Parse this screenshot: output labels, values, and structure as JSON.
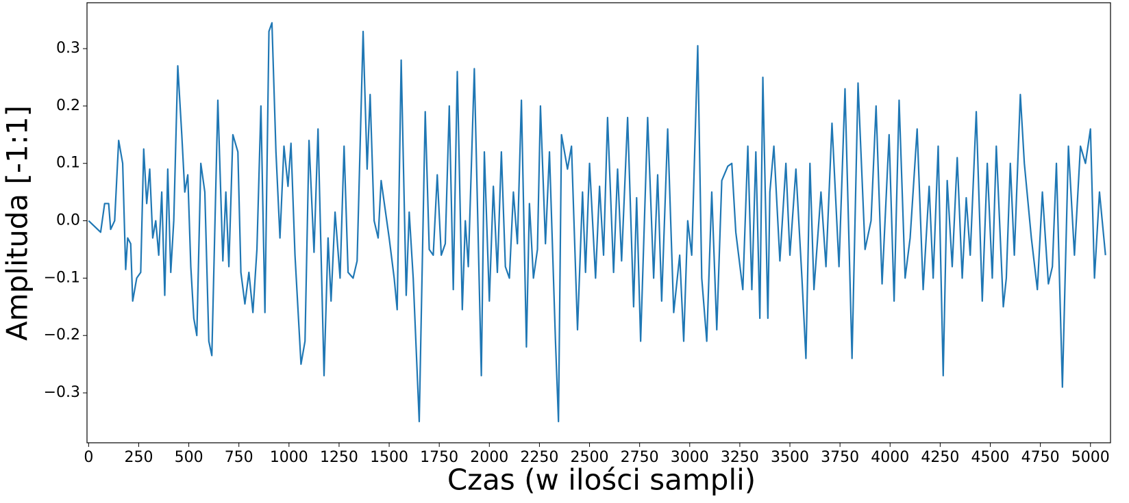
{
  "chart_data": {
    "type": "line",
    "xlabel": "Czas (w ilości sampli)",
    "ylabel": "Amplituda [-1:1]",
    "color": "#1f77b4",
    "xlim": [
      -8,
      5100
    ],
    "ylim": [
      -0.387,
      0.38
    ],
    "xticks": [
      0,
      250,
      500,
      750,
      1000,
      1250,
      1500,
      1750,
      2000,
      2250,
      2500,
      2750,
      3000,
      3250,
      3500,
      3750,
      4000,
      4250,
      4500,
      4750,
      5000
    ],
    "yticks": [
      {
        "value": -0.3,
        "label": "−0.3"
      },
      {
        "value": -0.2,
        "label": "−0.2"
      },
      {
        "value": -0.1,
        "label": "−0.1"
      },
      {
        "value": 0,
        "label": "0.0"
      },
      {
        "value": 0.1,
        "label": "0.1"
      },
      {
        "value": 0.2,
        "label": "0.2"
      },
      {
        "value": 0.3,
        "label": "0.3"
      }
    ],
    "x": [
      0,
      60,
      80,
      100,
      110,
      130,
      150,
      170,
      185,
      195,
      210,
      220,
      240,
      260,
      275,
      290,
      305,
      320,
      335,
      350,
      365,
      380,
      395,
      410,
      425,
      445,
      465,
      480,
      495,
      510,
      525,
      540,
      560,
      580,
      600,
      615,
      645,
      670,
      685,
      700,
      720,
      745,
      760,
      780,
      800,
      820,
      840,
      860,
      880,
      900,
      915,
      935,
      955,
      975,
      995,
      1010,
      1030,
      1060,
      1080,
      1100,
      1125,
      1145,
      1175,
      1195,
      1210,
      1230,
      1255,
      1275,
      1295,
      1320,
      1340,
      1370,
      1390,
      1405,
      1425,
      1445,
      1460,
      1480,
      1500,
      1525,
      1540,
      1560,
      1585,
      1600,
      1620,
      1650,
      1680,
      1700,
      1720,
      1740,
      1760,
      1780,
      1800,
      1820,
      1840,
      1865,
      1880,
      1895,
      1925,
      1960,
      1975,
      2000,
      2020,
      2040,
      2060,
      2080,
      2100,
      2120,
      2140,
      2160,
      2185,
      2200,
      2220,
      2240,
      2255,
      2280,
      2300,
      2330,
      2345,
      2360,
      2390,
      2410,
      2440,
      2465,
      2480,
      2500,
      2530,
      2550,
      2570,
      2590,
      2620,
      2640,
      2660,
      2690,
      2720,
      2735,
      2755,
      2790,
      2820,
      2840,
      2860,
      2890,
      2920,
      2950,
      2970,
      2990,
      3010,
      3040,
      3060,
      3085,
      3110,
      3135,
      3160,
      3190,
      3210,
      3230,
      3265,
      3290,
      3310,
      3330,
      3350,
      3365,
      3390,
      3400,
      3420,
      3450,
      3480,
      3500,
      3530,
      3560,
      3580,
      3600,
      3620,
      3655,
      3680,
      3710,
      3745,
      3775,
      3810,
      3840,
      3875,
      3905,
      3930,
      3960,
      3995,
      4020,
      4045,
      4075,
      4100,
      4135,
      4165,
      4195,
      4215,
      4240,
      4265,
      4285,
      4310,
      4335,
      4360,
      4380,
      4400,
      4430,
      4460,
      4485,
      4510,
      4530,
      4565,
      4580,
      4600,
      4620,
      4650,
      4670,
      4705,
      4735,
      4760,
      4790,
      4810,
      4830,
      4860,
      4890,
      4920,
      4950,
      4975,
      5000,
      5020,
      5045,
      5075
    ],
    "values": [
      0.0,
      -0.02,
      0.03,
      0.03,
      -0.015,
      0.0,
      0.14,
      0.1,
      -0.085,
      -0.03,
      -0.04,
      -0.14,
      -0.1,
      -0.09,
      0.125,
      0.03,
      0.09,
      -0.03,
      0.0,
      -0.06,
      0.05,
      -0.13,
      0.09,
      -0.09,
      0.0,
      0.27,
      0.15,
      0.05,
      0.08,
      -0.08,
      -0.17,
      -0.2,
      0.1,
      0.05,
      -0.21,
      -0.235,
      0.21,
      -0.07,
      0.05,
      -0.08,
      0.15,
      0.12,
      -0.09,
      -0.145,
      -0.09,
      -0.16,
      -0.05,
      0.2,
      -0.16,
      0.33,
      0.345,
      0.12,
      -0.03,
      0.13,
      0.06,
      0.135,
      -0.06,
      -0.25,
      -0.21,
      0.14,
      -0.055,
      0.16,
      -0.27,
      -0.03,
      -0.14,
      0.015,
      -0.1,
      0.13,
      -0.09,
      -0.1,
      -0.07,
      0.33,
      0.09,
      0.22,
      0.0,
      -0.03,
      0.07,
      0.02,
      -0.03,
      -0.1,
      -0.155,
      0.28,
      -0.13,
      0.015,
      -0.1,
      -0.35,
      0.19,
      -0.05,
      -0.06,
      0.08,
      -0.06,
      -0.04,
      0.2,
      -0.12,
      0.26,
      -0.155,
      0.0,
      -0.08,
      0.265,
      -0.27,
      0.12,
      -0.14,
      0.06,
      -0.09,
      0.12,
      -0.08,
      -0.1,
      0.05,
      -0.04,
      0.21,
      -0.22,
      0.03,
      -0.1,
      -0.05,
      0.2,
      -0.04,
      0.12,
      -0.21,
      -0.35,
      0.15,
      0.09,
      0.13,
      -0.19,
      0.05,
      -0.09,
      0.1,
      -0.1,
      0.06,
      -0.06,
      0.18,
      -0.09,
      0.09,
      -0.07,
      0.18,
      -0.15,
      0.04,
      -0.21,
      0.18,
      -0.1,
      0.08,
      -0.14,
      0.16,
      -0.16,
      -0.06,
      -0.21,
      0.0,
      -0.06,
      0.305,
      -0.1,
      -0.21,
      0.05,
      -0.19,
      0.07,
      0.095,
      0.1,
      -0.02,
      -0.12,
      0.13,
      -0.12,
      0.12,
      -0.17,
      0.25,
      -0.17,
      0.05,
      0.13,
      -0.07,
      0.1,
      -0.06,
      0.09,
      -0.1,
      -0.24,
      0.1,
      -0.12,
      0.05,
      -0.08,
      0.17,
      -0.08,
      0.23,
      -0.24,
      0.24,
      -0.05,
      0.0,
      0.2,
      -0.11,
      0.15,
      -0.14,
      0.21,
      -0.1,
      -0.03,
      0.16,
      -0.12,
      0.06,
      -0.1,
      0.13,
      -0.27,
      0.07,
      -0.08,
      0.11,
      -0.1,
      0.04,
      -0.06,
      0.19,
      -0.14,
      0.1,
      -0.1,
      0.13,
      -0.15,
      -0.1,
      0.1,
      -0.06,
      0.22,
      0.1,
      -0.03,
      -0.12,
      0.05,
      -0.11,
      -0.08,
      0.1,
      -0.29,
      0.13,
      -0.06,
      0.13,
      0.1,
      0.16,
      -0.1,
      0.05,
      -0.06
    ]
  }
}
